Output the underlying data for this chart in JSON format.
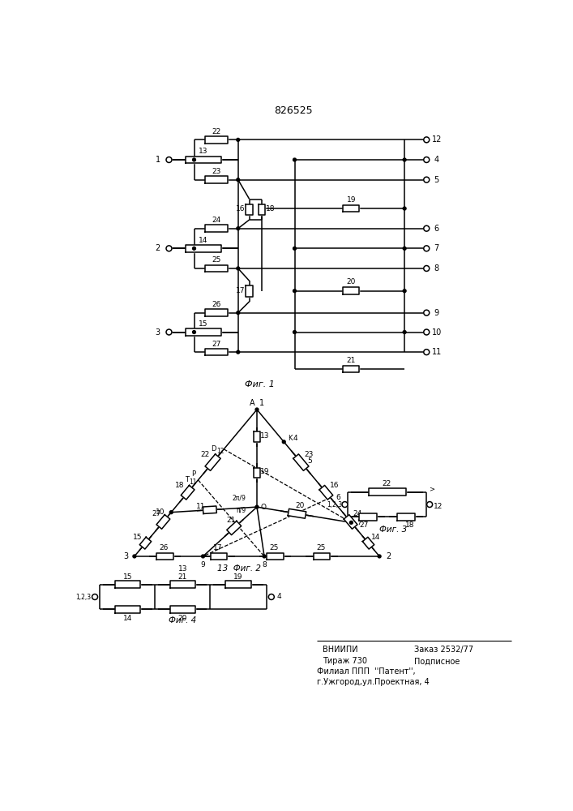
{
  "title": "826525",
  "lw": 1.1,
  "fig1_label": "Фиг. 1",
  "fig2_label": "13  Фиг. 2",
  "fig3_label": "Фиг. 3",
  "fig4_label": "Фиг. 4",
  "vnipi_line1": "ВНИИПИ",
  "vnipi_line1r": "Заказ 2532/77",
  "vnipi_line2": "Тираж 730",
  "vnipi_line2r": "Подписное",
  "vnipi_line3": "Филиал ППП  ''Патент'',",
  "vnipi_line4": "г.Ужгород,ул.Проектная, 4"
}
